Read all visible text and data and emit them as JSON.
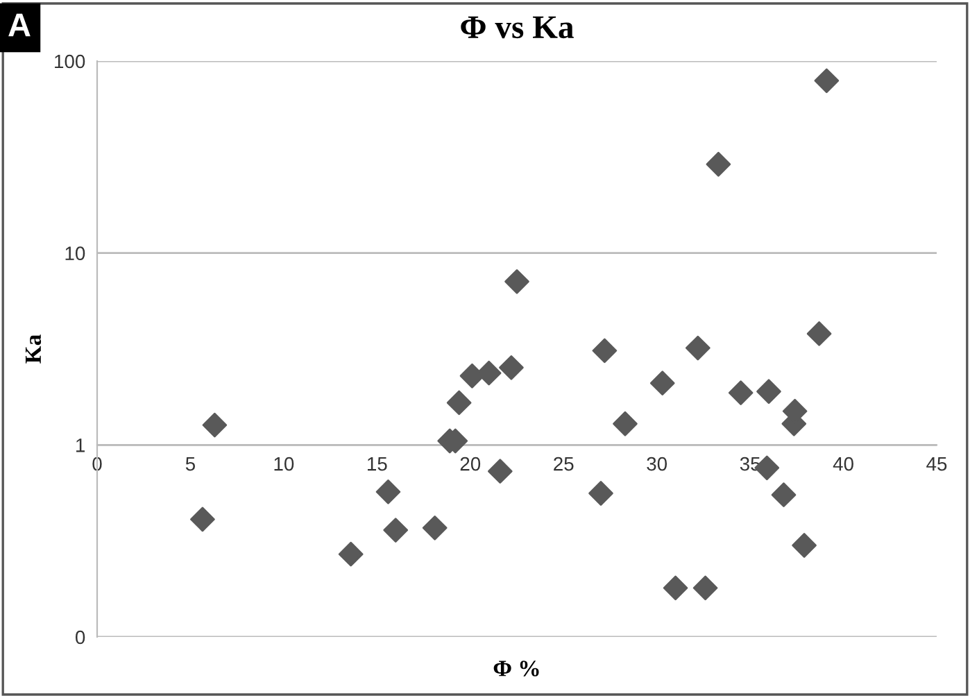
{
  "chart_data": {
    "type": "scatter",
    "title": "Φ vs Ka",
    "xlabel": "Φ %",
    "ylabel": "Ka",
    "annotations": [
      "A"
    ],
    "x": [
      5.65,
      6.3,
      13.6,
      15.6,
      16.0,
      18.1,
      18.9,
      19.2,
      19.4,
      20.1,
      21.0,
      21.6,
      22.2,
      22.5,
      27.0,
      27.2,
      28.3,
      30.3,
      31.0,
      32.2,
      32.6,
      33.3,
      34.5,
      35.9,
      36.0,
      36.8,
      37.35,
      37.4,
      37.9,
      38.7,
      39.1
    ],
    "series": [
      {
        "color": "#595959",
        "values": [
          0.41,
          1.27,
          0.27,
          0.57,
          0.36,
          0.37,
          1.05,
          1.05,
          1.66,
          2.29,
          2.37,
          0.73,
          2.53,
          7.1,
          0.56,
          3.1,
          1.29,
          2.1,
          0.18,
          3.2,
          0.18,
          29,
          1.87,
          0.76,
          1.9,
          0.55,
          1.29,
          1.5,
          0.3,
          3.8,
          79
        ]
      }
    ],
    "marker": "diamond",
    "log": "y",
    "grid": "y",
    "xlim": [
      0,
      45
    ],
    "xticks": [
      0,
      5,
      10,
      15,
      20,
      25,
      30,
      35,
      40,
      45
    ],
    "ylim": [
      0.1,
      100
    ],
    "yticks": [
      {
        "value": 0.1,
        "label": "0"
      },
      1,
      10,
      100
    ]
  }
}
